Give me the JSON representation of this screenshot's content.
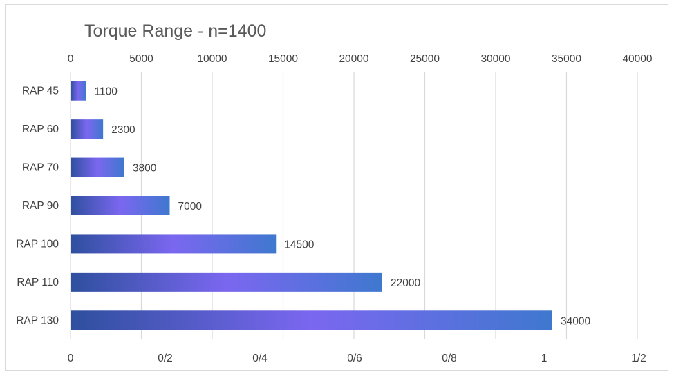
{
  "chart_data": {
    "type": "bar",
    "orientation": "horizontal",
    "title": "Torque Range - n=1400",
    "categories": [
      "RAP 45",
      "RAP 60",
      "RAP 70",
      "RAP 90",
      "RAP 100",
      "RAP 110",
      "RAP 130"
    ],
    "values": [
      1100,
      2300,
      3800,
      7000,
      14500,
      22000,
      34000
    ],
    "data_labels": [
      "1100",
      "2300",
      "3800",
      "7000",
      "14500",
      "22000",
      "34000"
    ],
    "xlim": [
      0,
      40000
    ],
    "top_axis_ticks": [
      "0",
      "5000",
      "10000",
      "15000",
      "20000",
      "25000",
      "30000",
      "35000",
      "40000"
    ],
    "bottom_axis_ticks": [
      "0",
      "0/2",
      "0/4",
      "0/6",
      "0/8",
      "1",
      "1/2"
    ],
    "grid": true,
    "legend": "none",
    "colors": {
      "bar_gradient": [
        "#2e4f9e",
        "#7b67f0",
        "#3f78cf"
      ],
      "grid": "#d9d9d9",
      "text": "#404040",
      "title": "#595959"
    }
  }
}
